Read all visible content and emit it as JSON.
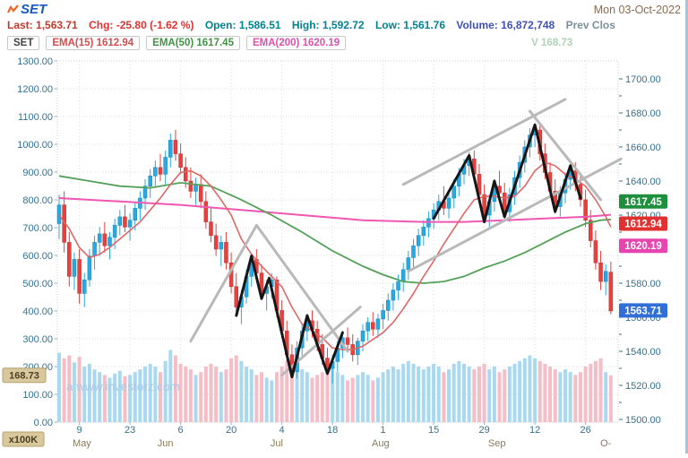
{
  "header": {
    "logo": "SET",
    "date": "Mon 03-Oct-2022",
    "info": [
      {
        "label": "Last:",
        "value": "1,563.71",
        "color": "#c0392b"
      },
      {
        "label": "Chg:",
        "value": "-25.80 (-1.62 %)",
        "color": "#e03131"
      },
      {
        "label": "Open:",
        "value": "1,586.51",
        "color": "#00838f"
      },
      {
        "label": "High:",
        "value": "1,592.72",
        "color": "#00838f"
      },
      {
        "label": "Low:",
        "value": "1,561.76",
        "color": "#00838f"
      },
      {
        "label": "Volume:",
        "value": "16,872,748",
        "color": "#3f51b5"
      },
      {
        "label": "Prev Clos",
        "value": "",
        "color": "#78909c"
      }
    ],
    "legend": [
      {
        "label": "SET",
        "value": "",
        "color": "#444444"
      },
      {
        "label": "EMA(15)",
        "value": "1612.94",
        "color": "#d84b4b"
      },
      {
        "label": "EMA(50)",
        "value": "1617.45",
        "color": "#3f9342"
      },
      {
        "label": "EMA(200)",
        "value": "1620.19",
        "color": "#e04fae"
      },
      {
        "label": "V",
        "value": "168.73",
        "color": "#aed3b5"
      }
    ]
  },
  "chart_data": {
    "type": "candlestick",
    "title": "SET",
    "watermark": "a www.investorz.com",
    "price_axis": {
      "side": "right",
      "min": 1500,
      "max": 1700,
      "step": 20
    },
    "volume_axis": {
      "side": "left",
      "min": 0,
      "max": 1300,
      "step": 100,
      "unit": "x100K"
    },
    "x_ticks": {
      "days": [
        {
          "i": 4,
          "t": "9"
        },
        {
          "i": 14,
          "t": "23"
        },
        {
          "i": 24,
          "t": "6"
        },
        {
          "i": 34,
          "t": "20"
        },
        {
          "i": 44,
          "t": "4"
        },
        {
          "i": 54,
          "t": "18"
        },
        {
          "i": 64,
          "t": "1"
        },
        {
          "i": 74,
          "t": "15"
        },
        {
          "i": 84,
          "t": "29"
        },
        {
          "i": 94,
          "t": "12"
        },
        {
          "i": 104,
          "t": "26"
        }
      ],
      "months": [
        {
          "i": 4.5,
          "t": "May"
        },
        {
          "i": 21,
          "t": "Jun"
        },
        {
          "i": 43,
          "t": "Jul"
        },
        {
          "i": 63.5,
          "t": "Aug"
        },
        {
          "i": 86.5,
          "t": "Sep"
        },
        {
          "i": 108,
          "t": "O-"
        }
      ]
    },
    "colors": {
      "up": "#29a9e1",
      "up_stroke": "#1786b8",
      "down": "#e8403e",
      "down_stroke": "#c12f2e",
      "vol_up": "#a9d9f0",
      "vol_down": "#f6bdc7",
      "ema15": "#e06767",
      "ema50": "#53a058",
      "ema200": "#ef57b2",
      "grid": "#dcdcdc",
      "axis_text": "#35718f",
      "month_text": "#8a7a5a",
      "annotation_gray": "#b9b9b9",
      "annotation_black": "#161616",
      "watermark": "#aac8e4"
    },
    "candles": [
      [
        1615,
        1632,
        1606,
        1626,
        250
      ],
      [
        1626,
        1634,
        1598,
        1604,
        230
      ],
      [
        1604,
        1610,
        1578,
        1584,
        240
      ],
      [
        1584,
        1598,
        1576,
        1594,
        215
      ],
      [
        1594,
        1600,
        1568,
        1574,
        235
      ],
      [
        1574,
        1586,
        1566,
        1582,
        200
      ],
      [
        1582,
        1600,
        1578,
        1596,
        210
      ],
      [
        1596,
        1608,
        1588,
        1604,
        190
      ],
      [
        1604,
        1613,
        1596,
        1609,
        180
      ],
      [
        1609,
        1616,
        1598,
        1602,
        170
      ],
      [
        1602,
        1610,
        1594,
        1607,
        160
      ],
      [
        1607,
        1618,
        1600,
        1614,
        175
      ],
      [
        1614,
        1623,
        1608,
        1619,
        185
      ],
      [
        1619,
        1626,
        1610,
        1613,
        165
      ],
      [
        1613,
        1621,
        1605,
        1617,
        170
      ],
      [
        1617,
        1628,
        1611,
        1624,
        180
      ],
      [
        1624,
        1634,
        1617,
        1630,
        190
      ],
      [
        1630,
        1641,
        1623,
        1637,
        200
      ],
      [
        1637,
        1647,
        1630,
        1643,
        210
      ],
      [
        1643,
        1652,
        1636,
        1648,
        200
      ],
      [
        1648,
        1656,
        1640,
        1644,
        180
      ],
      [
        1644,
        1658,
        1638,
        1654,
        220
      ],
      [
        1654,
        1668,
        1648,
        1664,
        260
      ],
      [
        1664,
        1670,
        1652,
        1656,
        240
      ],
      [
        1656,
        1662,
        1644,
        1648,
        210
      ],
      [
        1648,
        1654,
        1636,
        1640,
        200
      ],
      [
        1640,
        1648,
        1630,
        1634,
        190
      ],
      [
        1634,
        1642,
        1626,
        1638,
        170
      ],
      [
        1638,
        1644,
        1624,
        1628,
        180
      ],
      [
        1628,
        1634,
        1612,
        1616,
        200
      ],
      [
        1616,
        1624,
        1604,
        1608,
        210
      ],
      [
        1608,
        1615,
        1596,
        1600,
        200
      ],
      [
        1600,
        1608,
        1590,
        1604,
        180
      ],
      [
        1604,
        1610,
        1588,
        1592,
        190
      ],
      [
        1592,
        1598,
        1574,
        1578,
        230
      ],
      [
        1578,
        1586,
        1562,
        1566,
        240
      ],
      [
        1566,
        1576,
        1556,
        1572,
        220
      ],
      [
        1572,
        1588,
        1568,
        1584,
        200
      ],
      [
        1584,
        1598,
        1578,
        1594,
        190
      ],
      [
        1594,
        1600,
        1582,
        1586,
        170
      ],
      [
        1586,
        1591,
        1570,
        1574,
        180
      ],
      [
        1574,
        1582,
        1564,
        1578,
        160
      ],
      [
        1578,
        1586,
        1571,
        1582,
        150
      ],
      [
        1582,
        1584,
        1560,
        1564,
        180
      ],
      [
        1564,
        1570,
        1548,
        1552,
        200
      ],
      [
        1552,
        1558,
        1534,
        1538,
        220
      ],
      [
        1538,
        1544,
        1524,
        1528,
        230
      ],
      [
        1528,
        1546,
        1524,
        1542,
        210
      ],
      [
        1542,
        1556,
        1536,
        1552,
        190
      ],
      [
        1552,
        1562,
        1546,
        1558,
        180
      ],
      [
        1558,
        1564,
        1548,
        1553,
        160
      ],
      [
        1553,
        1558,
        1540,
        1544,
        170
      ],
      [
        1544,
        1550,
        1532,
        1536,
        180
      ],
      [
        1536,
        1542,
        1526,
        1530,
        190
      ],
      [
        1530,
        1538,
        1521,
        1534,
        200
      ],
      [
        1534,
        1546,
        1528,
        1542,
        180
      ],
      [
        1542,
        1552,
        1536,
        1548,
        170
      ],
      [
        1548,
        1554,
        1540,
        1544,
        150
      ],
      [
        1544,
        1550,
        1534,
        1538,
        160
      ],
      [
        1538,
        1548,
        1532,
        1546,
        170
      ],
      [
        1546,
        1556,
        1540,
        1552,
        180
      ],
      [
        1552,
        1560,
        1546,
        1557,
        170
      ],
      [
        1557,
        1563,
        1549,
        1553,
        150
      ],
      [
        1553,
        1562,
        1548,
        1559,
        160
      ],
      [
        1559,
        1568,
        1553,
        1564,
        180
      ],
      [
        1564,
        1574,
        1558,
        1570,
        190
      ],
      [
        1570,
        1580,
        1564,
        1576,
        200
      ],
      [
        1576,
        1585,
        1570,
        1581,
        190
      ],
      [
        1581,
        1592,
        1575,
        1588,
        210
      ],
      [
        1588,
        1599,
        1582,
        1595,
        220
      ],
      [
        1595,
        1606,
        1589,
        1602,
        210
      ],
      [
        1602,
        1612,
        1596,
        1608,
        200
      ],
      [
        1608,
        1617,
        1602,
        1613,
        190
      ],
      [
        1613,
        1622,
        1607,
        1618,
        200
      ],
      [
        1618,
        1627,
        1612,
        1623,
        210
      ],
      [
        1623,
        1632,
        1617,
        1628,
        200
      ],
      [
        1628,
        1637,
        1620,
        1624,
        180
      ],
      [
        1624,
        1634,
        1618,
        1630,
        190
      ],
      [
        1630,
        1641,
        1624,
        1637,
        210
      ],
      [
        1637,
        1648,
        1631,
        1644,
        220
      ],
      [
        1644,
        1653,
        1638,
        1649,
        210
      ],
      [
        1649,
        1657,
        1643,
        1653,
        200
      ],
      [
        1653,
        1658,
        1640,
        1644,
        190
      ],
      [
        1644,
        1650,
        1628,
        1632,
        200
      ],
      [
        1632,
        1638,
        1616,
        1620,
        210
      ],
      [
        1620,
        1632,
        1613,
        1628,
        190
      ],
      [
        1628,
        1641,
        1622,
        1637,
        200
      ],
      [
        1637,
        1646,
        1630,
        1633,
        180
      ],
      [
        1633,
        1639,
        1618,
        1622,
        190
      ],
      [
        1622,
        1636,
        1616,
        1632,
        200
      ],
      [
        1632,
        1646,
        1626,
        1642,
        210
      ],
      [
        1642,
        1655,
        1636,
        1651,
        220
      ],
      [
        1651,
        1664,
        1645,
        1660,
        230
      ],
      [
        1660,
        1671,
        1654,
        1667,
        240
      ],
      [
        1667,
        1674,
        1660,
        1670,
        230
      ],
      [
        1670,
        1673,
        1652,
        1656,
        220
      ],
      [
        1656,
        1662,
        1641,
        1645,
        210
      ],
      [
        1645,
        1651,
        1630,
        1634,
        200
      ],
      [
        1634,
        1641,
        1621,
        1625,
        190
      ],
      [
        1625,
        1637,
        1619,
        1633,
        180
      ],
      [
        1633,
        1645,
        1627,
        1641,
        190
      ],
      [
        1641,
        1650,
        1635,
        1646,
        180
      ],
      [
        1646,
        1651,
        1634,
        1638,
        170
      ],
      [
        1638,
        1643,
        1625,
        1629,
        180
      ],
      [
        1629,
        1635,
        1613,
        1617,
        200
      ],
      [
        1617,
        1623,
        1601,
        1605,
        210
      ],
      [
        1605,
        1611,
        1588,
        1592,
        220
      ],
      [
        1592,
        1599,
        1576,
        1581,
        230
      ],
      [
        1581,
        1591,
        1573,
        1587,
        180
      ],
      [
        1586.51,
        1592.72,
        1561.76,
        1563.71,
        168.73
      ]
    ],
    "ema15": [
      [
        0,
        1620
      ],
      [
        2,
        1612
      ],
      [
        4,
        1601
      ],
      [
        6,
        1595
      ],
      [
        8,
        1597
      ],
      [
        10,
        1601
      ],
      [
        12,
        1606
      ],
      [
        14,
        1611
      ],
      [
        16,
        1616
      ],
      [
        18,
        1623
      ],
      [
        20,
        1630
      ],
      [
        22,
        1638
      ],
      [
        24,
        1645
      ],
      [
        26,
        1646
      ],
      [
        28,
        1643
      ],
      [
        30,
        1637
      ],
      [
        32,
        1629
      ],
      [
        34,
        1620
      ],
      [
        36,
        1606
      ],
      [
        38,
        1597
      ],
      [
        40,
        1590
      ],
      [
        42,
        1584
      ],
      [
        44,
        1578
      ],
      [
        46,
        1566
      ],
      [
        48,
        1556
      ],
      [
        50,
        1552
      ],
      [
        52,
        1548
      ],
      [
        54,
        1542
      ],
      [
        56,
        1541
      ],
      [
        58,
        1541
      ],
      [
        60,
        1543
      ],
      [
        62,
        1547
      ],
      [
        64,
        1551
      ],
      [
        66,
        1557
      ],
      [
        68,
        1565
      ],
      [
        70,
        1574
      ],
      [
        72,
        1584
      ],
      [
        74,
        1593
      ],
      [
        76,
        1603
      ],
      [
        78,
        1612
      ],
      [
        80,
        1621
      ],
      [
        82,
        1629
      ],
      [
        84,
        1631
      ],
      [
        86,
        1631
      ],
      [
        88,
        1630
      ],
      [
        90,
        1631
      ],
      [
        92,
        1637
      ],
      [
        94,
        1646
      ],
      [
        96,
        1651
      ],
      [
        98,
        1649
      ],
      [
        100,
        1644
      ],
      [
        102,
        1641
      ],
      [
        104,
        1637
      ],
      [
        106,
        1629
      ],
      [
        108,
        1619
      ],
      [
        109,
        1612.94
      ]
    ],
    "ema50": [
      [
        0,
        1643
      ],
      [
        6,
        1640
      ],
      [
        12,
        1637
      ],
      [
        18,
        1636
      ],
      [
        24,
        1639
      ],
      [
        30,
        1637
      ],
      [
        36,
        1629
      ],
      [
        42,
        1620
      ],
      [
        48,
        1610
      ],
      [
        54,
        1599
      ],
      [
        60,
        1590
      ],
      [
        64,
        1585
      ],
      [
        68,
        1581
      ],
      [
        72,
        1580
      ],
      [
        76,
        1581
      ],
      [
        80,
        1584
      ],
      [
        84,
        1589
      ],
      [
        88,
        1593
      ],
      [
        92,
        1598
      ],
      [
        96,
        1604
      ],
      [
        100,
        1610
      ],
      [
        104,
        1615
      ],
      [
        107,
        1617
      ],
      [
        109,
        1617.45
      ]
    ],
    "ema200": [
      [
        0,
        1630
      ],
      [
        12,
        1628
      ],
      [
        24,
        1626
      ],
      [
        36,
        1623
      ],
      [
        48,
        1620
      ],
      [
        60,
        1617
      ],
      [
        72,
        1616
      ],
      [
        80,
        1616
      ],
      [
        88,
        1617
      ],
      [
        96,
        1618
      ],
      [
        104,
        1619
      ],
      [
        109,
        1620.19
      ]
    ],
    "annotations": {
      "gray_lines": [
        [
          [
            26,
            1546
          ],
          [
            39,
            1614
          ]
        ],
        [
          [
            39,
            1614
          ],
          [
            57,
            1540
          ]
        ],
        [
          [
            44,
            1526
          ],
          [
            59.5,
            1566
          ]
        ],
        [
          [
            68,
            1638
          ],
          [
            100,
            1688
          ]
        ],
        [
          [
            69,
            1587
          ],
          [
            111,
            1653
          ]
        ],
        [
          [
            93,
            1681
          ],
          [
            107,
            1629
          ]
        ]
      ],
      "black_zigzags": [
        [
          [
            35,
            1561
          ],
          [
            38,
            1596
          ],
          [
            40,
            1571
          ],
          [
            41.5,
            1583
          ],
          [
            46,
            1525
          ],
          [
            49,
            1561
          ],
          [
            53,
            1527
          ],
          [
            56,
            1551
          ]
        ],
        [
          [
            74,
            1618
          ],
          [
            81,
            1655
          ],
          [
            84,
            1616
          ],
          [
            86,
            1640
          ],
          [
            88,
            1619
          ],
          [
            94,
            1673
          ],
          [
            98,
            1622
          ],
          [
            101,
            1649
          ],
          [
            103,
            1630
          ]
        ]
      ]
    },
    "price_tags": [
      {
        "value": "1617.45",
        "bg": "#1f8f3e",
        "at": 1628,
        "name": "price-tag-ema50"
      },
      {
        "value": "1612.94",
        "bg": "#e03131",
        "at": 1615,
        "name": "price-tag-ema15"
      },
      {
        "value": "1620.19",
        "bg": "#e644ae",
        "at": 1602,
        "name": "price-tag-ema200"
      },
      {
        "value": "1563.71",
        "bg": "#2f6fd6",
        "at": 1564,
        "name": "price-tag-last"
      }
    ],
    "volume_tag": {
      "value": "168.73",
      "bg": "#d9c89e",
      "border": "#b3a26d",
      "fg": "#4a3f1f"
    },
    "unit_tag": {
      "value": "x100K",
      "bg": "#d9c89e",
      "border": "#b3a26d",
      "fg": "#4a3f1f"
    }
  }
}
